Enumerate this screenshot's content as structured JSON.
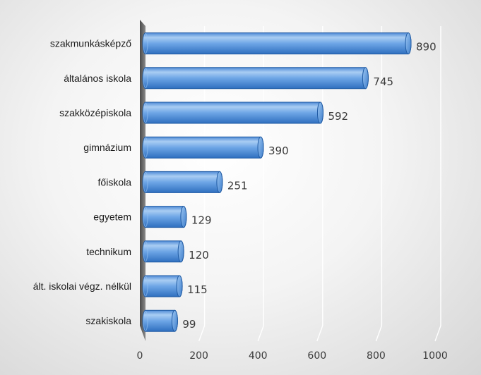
{
  "chart_data": {
    "type": "bar",
    "orientation": "horizontal",
    "categories": [
      "szakmunkásképző",
      "általános iskola",
      "szakközépiskola",
      "gimnázium",
      "főiskola",
      "egyetem",
      "technikum",
      "ált. iskolai végz. nélkül",
      "szakiskola"
    ],
    "values": [
      890,
      745,
      592,
      390,
      251,
      129,
      120,
      115,
      99
    ],
    "value_labels": [
      "890",
      "745",
      "592",
      "390",
      "251",
      "129",
      "120",
      "115",
      "99"
    ],
    "xlim": [
      0,
      1000
    ],
    "xticks": [
      0,
      200,
      400,
      600,
      800,
      1000
    ],
    "xtick_labels": [
      "0",
      "200",
      "400",
      "600",
      "800",
      "1000"
    ],
    "grid": "vertical",
    "legend": "none",
    "bar_style": "3d-cylinder",
    "colors": {
      "bar_light": "#a9cdf3",
      "bar_mid": "#6ea6e6",
      "bar_dark": "#2f6fbf",
      "bar_edge": "#1f5aa3",
      "wall": "#6e6e6e",
      "grid": "#ffffff"
    }
  }
}
